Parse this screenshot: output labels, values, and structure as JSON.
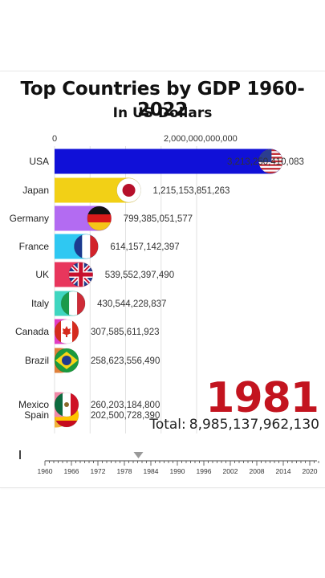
{
  "chart_data": {
    "type": "bar",
    "title": "Top Countries by GDP 1960-2022",
    "subtitle": "In US Dollars",
    "x_axis_ticks": [
      {
        "value": 0,
        "label": "0"
      },
      {
        "value": 2000000000000,
        "label": "2,000,000,000,000"
      }
    ],
    "xlim": [
      0,
      3200000000000
    ],
    "grid": true,
    "categories": [
      "USA",
      "Japan",
      "Germany",
      "France",
      "UK",
      "Italy",
      "Canada",
      "Brazil",
      "Mexico",
      "Spain"
    ],
    "values": [
      3213250410083,
      1215153851263,
      799385051577,
      614157142397,
      539552397490,
      430544228837,
      307585611923,
      258623556490,
      260203184800,
      202500728390
    ],
    "value_labels": [
      "3,213,250,410,083",
      "1,215,153,851,263",
      "799,385,051,577",
      "614,157,142,397",
      "539,552,397,490",
      "430,544,228,837",
      "307,585,611,923",
      "258,623,556,490",
      "260,203,184,800",
      "202,500,728,390"
    ],
    "colors": [
      "#1010d8",
      "#f2d016",
      "#b36bf2",
      "#2fc8f2",
      "#e8365c",
      "#3fd6c0",
      "#e23cc4",
      "#e0803a",
      "#f08aa8",
      "#f2b43a"
    ],
    "flags": [
      "flag-usa",
      "flag-japan",
      "flag-germany",
      "flag-france",
      "flag-uk",
      "flag-italy",
      "flag-canada",
      "flag-brazil",
      "flag-mexico",
      "flag-spain"
    ]
  },
  "year": "1981",
  "total": {
    "label": "Total:",
    "value": "8,985,137,962,130"
  },
  "timeline": {
    "ticks": [
      "1960",
      "1966",
      "1972",
      "1978",
      "1984",
      "1990",
      "1996",
      "2002",
      "2008",
      "2014",
      "2020"
    ],
    "start_year": 1960,
    "end_year": 2022,
    "current_year": 1981
  }
}
